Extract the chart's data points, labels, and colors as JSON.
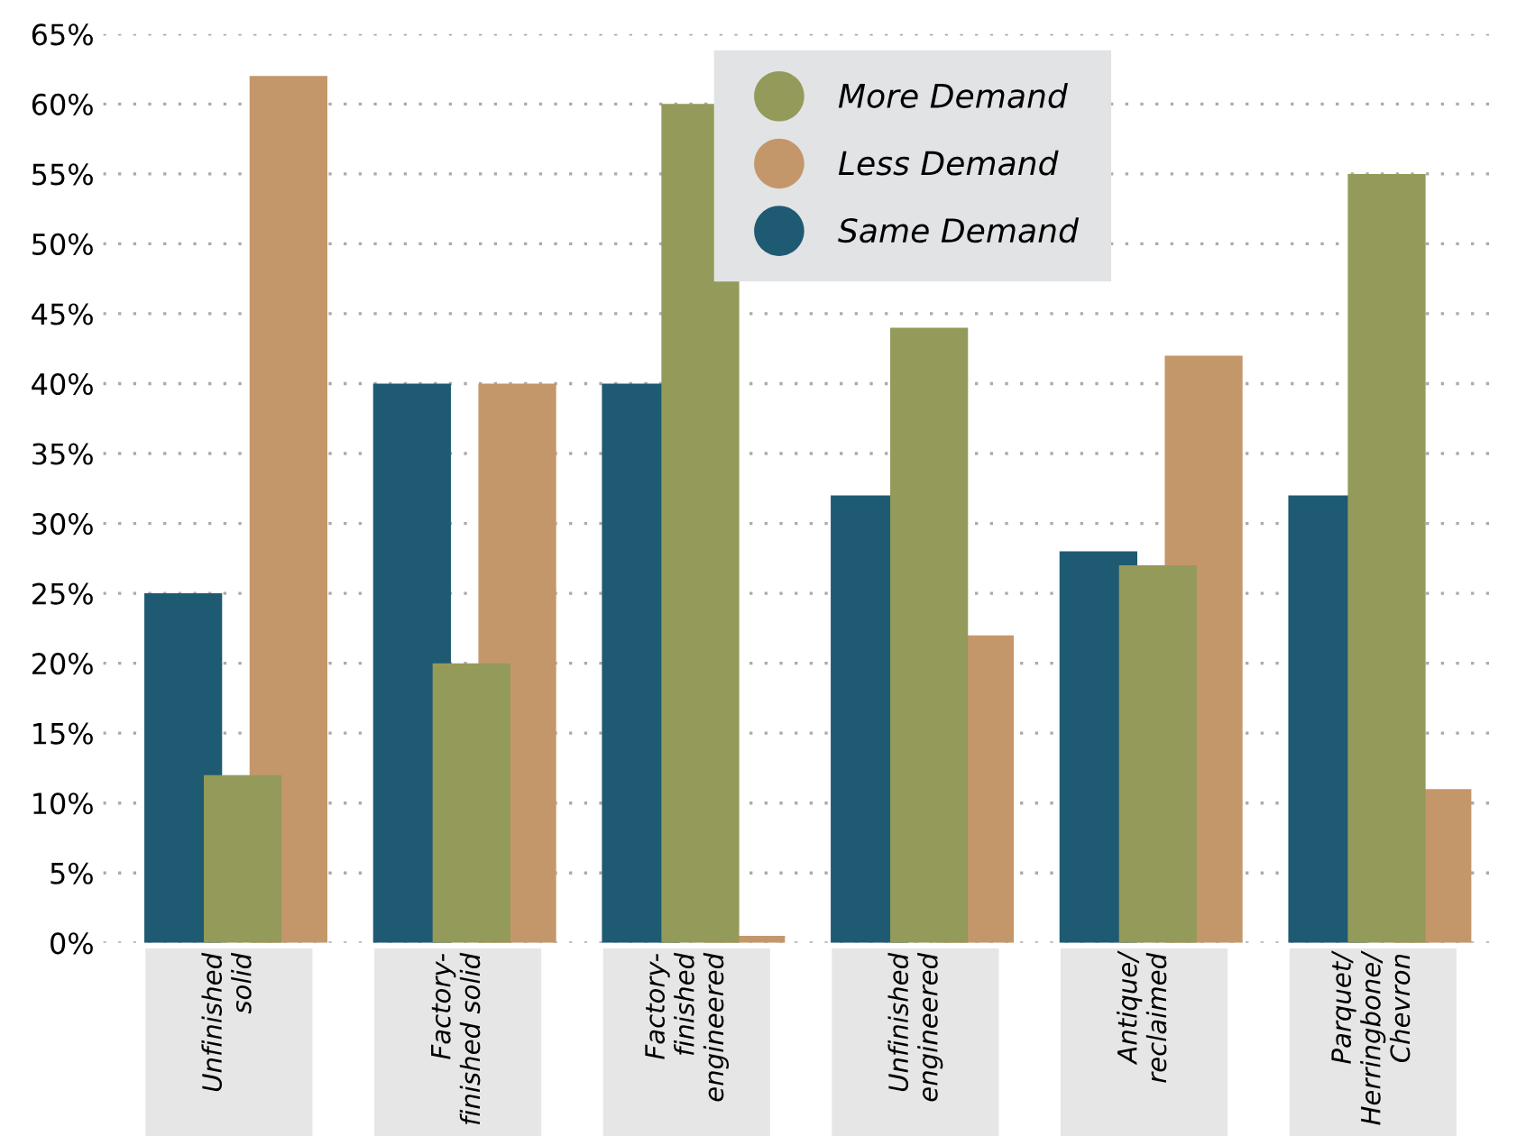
{
  "chart_data": {
    "type": "bar",
    "categories": [
      "Unfinished\nsolid",
      "Factory-\nfinished solid",
      "Factory-\nfinished\nengineered",
      "Unfinished\nengineered",
      "Antique/\nreclaimed",
      "Parquet/\nHerringbone/\nChevron"
    ],
    "series": [
      {
        "name": "More Demand",
        "color": "#949a5a",
        "values": [
          12,
          20,
          60,
          44,
          27,
          55
        ]
      },
      {
        "name": "Less Demand",
        "color": "#c4976a",
        "values": [
          62,
          40,
          0.5,
          22,
          42,
          11
        ]
      },
      {
        "name": "Same Demand",
        "color": "#1f5a73",
        "values": [
          25,
          40,
          40,
          32,
          28,
          32
        ]
      }
    ],
    "ylim": [
      0,
      65
    ],
    "yticks": [
      {
        "value": 0,
        "label": "0%"
      },
      {
        "value": 5,
        "label": "5%"
      },
      {
        "value": 10,
        "label": "10%"
      },
      {
        "value": 15,
        "label": "15%"
      },
      {
        "value": 20,
        "label": "20%"
      },
      {
        "value": 25,
        "label": "25%"
      },
      {
        "value": 30,
        "label": "30%"
      },
      {
        "value": 35,
        "label": "35%"
      },
      {
        "value": 40,
        "label": "40%"
      },
      {
        "value": 45,
        "label": "45%"
      },
      {
        "value": 50,
        "label": "50%"
      },
      {
        "value": 55,
        "label": "55%"
      },
      {
        "value": 60,
        "label": "60%"
      },
      {
        "value": 65,
        "label": "65%"
      }
    ],
    "grid": "y",
    "legend": "top"
  }
}
